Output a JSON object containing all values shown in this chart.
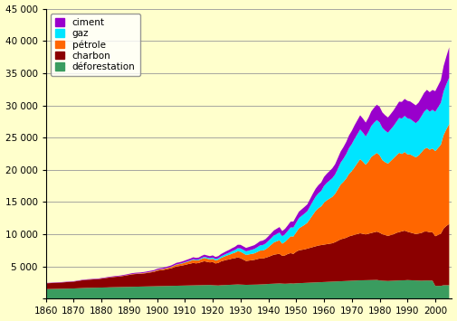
{
  "years": [
    1860,
    1861,
    1862,
    1863,
    1864,
    1865,
    1866,
    1867,
    1868,
    1869,
    1870,
    1871,
    1872,
    1873,
    1874,
    1875,
    1876,
    1877,
    1878,
    1879,
    1880,
    1881,
    1882,
    1883,
    1884,
    1885,
    1886,
    1887,
    1888,
    1889,
    1890,
    1891,
    1892,
    1893,
    1894,
    1895,
    1896,
    1897,
    1898,
    1899,
    1900,
    1901,
    1902,
    1903,
    1904,
    1905,
    1906,
    1907,
    1908,
    1909,
    1910,
    1911,
    1912,
    1913,
    1914,
    1915,
    1916,
    1917,
    1918,
    1919,
    1920,
    1921,
    1922,
    1923,
    1924,
    1925,
    1926,
    1927,
    1928,
    1929,
    1930,
    1931,
    1932,
    1933,
    1934,
    1935,
    1936,
    1937,
    1938,
    1939,
    1940,
    1941,
    1942,
    1943,
    1944,
    1945,
    1946,
    1947,
    1948,
    1949,
    1950,
    1951,
    1952,
    1953,
    1954,
    1955,
    1956,
    1957,
    1958,
    1959,
    1960,
    1961,
    1962,
    1963,
    1964,
    1965,
    1966,
    1967,
    1968,
    1969,
    1970,
    1971,
    1972,
    1973,
    1974,
    1975,
    1976,
    1977,
    1978,
    1979,
    1980,
    1981,
    1982,
    1983,
    1984,
    1985,
    1986,
    1987,
    1988,
    1989,
    1990,
    1991,
    1992,
    1993,
    1994,
    1995,
    1996,
    1997,
    1998,
    1999,
    2000,
    2001,
    2002,
    2003,
    2004,
    2005
  ],
  "deforestation": [
    1500,
    1510,
    1520,
    1530,
    1540,
    1550,
    1560,
    1570,
    1580,
    1590,
    1600,
    1620,
    1640,
    1660,
    1680,
    1700,
    1700,
    1710,
    1720,
    1730,
    1740,
    1750,
    1760,
    1780,
    1790,
    1800,
    1810,
    1820,
    1830,
    1840,
    1850,
    1860,
    1870,
    1880,
    1890,
    1900,
    1910,
    1920,
    1930,
    1940,
    1950,
    1960,
    1970,
    1980,
    1990,
    2000,
    2010,
    2020,
    2030,
    2040,
    2050,
    2060,
    2070,
    2080,
    2090,
    2100,
    2110,
    2120,
    2130,
    2140,
    2100,
    2080,
    2060,
    2100,
    2120,
    2140,
    2160,
    2180,
    2200,
    2220,
    2200,
    2180,
    2160,
    2170,
    2180,
    2190,
    2200,
    2220,
    2240,
    2260,
    2300,
    2320,
    2340,
    2360,
    2380,
    2350,
    2330,
    2350,
    2380,
    2360,
    2400,
    2420,
    2440,
    2460,
    2480,
    2500,
    2520,
    2540,
    2560,
    2580,
    2600,
    2620,
    2640,
    2660,
    2680,
    2700,
    2720,
    2740,
    2760,
    2780,
    2800,
    2820,
    2840,
    2860,
    2870,
    2880,
    2890,
    2900,
    2910,
    2920,
    2850,
    2800,
    2780,
    2760,
    2780,
    2800,
    2820,
    2840,
    2860,
    2870,
    2900,
    2880,
    2860,
    2840,
    2820,
    2800,
    2820,
    2830,
    2820,
    2810,
    2000,
    2000,
    2000,
    2100,
    2100,
    2100
  ],
  "charbon": [
    900,
    910,
    920,
    940,
    950,
    960,
    980,
    1000,
    1020,
    1040,
    1060,
    1100,
    1150,
    1200,
    1220,
    1250,
    1270,
    1290,
    1300,
    1320,
    1380,
    1420,
    1480,
    1520,
    1560,
    1600,
    1620,
    1660,
    1720,
    1780,
    1850,
    1920,
    1960,
    1970,
    1980,
    2020,
    2060,
    2120,
    2180,
    2240,
    2400,
    2450,
    2480,
    2560,
    2640,
    2720,
    2850,
    3000,
    3050,
    3120,
    3200,
    3300,
    3380,
    3480,
    3400,
    3450,
    3600,
    3700,
    3600,
    3500,
    3600,
    3400,
    3500,
    3700,
    3800,
    3900,
    3950,
    4050,
    4100,
    4200,
    4100,
    3900,
    3700,
    3750,
    3800,
    3850,
    3950,
    4050,
    4000,
    4100,
    4200,
    4350,
    4500,
    4550,
    4600,
    4300,
    4400,
    4600,
    4700,
    4600,
    4900,
    5100,
    5150,
    5200,
    5300,
    5400,
    5500,
    5600,
    5700,
    5750,
    5800,
    5850,
    5900,
    5950,
    6100,
    6300,
    6500,
    6600,
    6700,
    6900,
    7000,
    7100,
    7200,
    7300,
    7200,
    7100,
    7200,
    7300,
    7400,
    7500,
    7400,
    7200,
    7100,
    7000,
    7100,
    7200,
    7400,
    7500,
    7600,
    7700,
    7500,
    7400,
    7300,
    7200,
    7300,
    7400,
    7600,
    7600,
    7500,
    7500,
    7700,
    7900,
    8100,
    8800,
    9200,
    9500
  ],
  "petrole": [
    0,
    0,
    1,
    1,
    2,
    2,
    3,
    3,
    4,
    4,
    5,
    6,
    7,
    8,
    9,
    10,
    12,
    14,
    16,
    18,
    20,
    22,
    25,
    28,
    30,
    32,
    35,
    38,
    42,
    46,
    50,
    55,
    60,
    65,
    68,
    72,
    78,
    85,
    90,
    100,
    120,
    130,
    140,
    160,
    180,
    200,
    240,
    280,
    290,
    310,
    350,
    380,
    420,
    480,
    450,
    430,
    480,
    520,
    490,
    470,
    500,
    480,
    500,
    540,
    600,
    660,
    720,
    780,
    850,
    950,
    1000,
    970,
    940,
    960,
    980,
    1010,
    1100,
    1200,
    1250,
    1300,
    1500,
    1700,
    1900,
    2000,
    2100,
    1900,
    2100,
    2300,
    2600,
    2700,
    3000,
    3400,
    3600,
    3800,
    4000,
    4500,
    5000,
    5500,
    5800,
    6000,
    6500,
    6800,
    7000,
    7200,
    7500,
    8000,
    8500,
    8800,
    9200,
    9700,
    10000,
    10500,
    11000,
    11500,
    11200,
    10800,
    11200,
    11800,
    12000,
    12200,
    12000,
    11500,
    11300,
    11200,
    11500,
    11800,
    12000,
    12300,
    12000,
    12200,
    12000,
    12100,
    12000,
    11900,
    12100,
    12500,
    12800,
    13000,
    12800,
    13000,
    13200,
    13500,
    13800,
    14500,
    15000,
    15500
  ],
  "gaz": [
    0,
    0,
    0,
    0,
    0,
    0,
    0,
    0,
    0,
    0,
    0,
    0,
    0,
    0,
    0,
    0,
    0,
    0,
    0,
    0,
    0,
    0,
    0,
    0,
    0,
    0,
    0,
    0,
    0,
    0,
    5,
    6,
    7,
    8,
    9,
    10,
    12,
    14,
    16,
    18,
    20,
    22,
    25,
    28,
    30,
    35,
    40,
    45,
    50,
    60,
    70,
    80,
    90,
    100,
    110,
    120,
    140,
    160,
    170,
    180,
    200,
    210,
    220,
    240,
    270,
    300,
    340,
    380,
    420,
    480,
    520,
    540,
    560,
    600,
    640,
    680,
    740,
    800,
    850,
    900,
    970,
    1020,
    1080,
    1140,
    1200,
    1150,
    1200,
    1280,
    1380,
    1400,
    1500,
    1600,
    1680,
    1750,
    1800,
    1950,
    2100,
    2200,
    2300,
    2400,
    2600,
    2700,
    2800,
    2900,
    3000,
    3200,
    3400,
    3600,
    3800,
    4000,
    4200,
    4400,
    4500,
    4600,
    4500,
    4400,
    4600,
    4800,
    5000,
    5100,
    5100,
    5000,
    4900,
    4800,
    4900,
    5000,
    5200,
    5400,
    5500,
    5600,
    5600,
    5500,
    5400,
    5300,
    5400,
    5600,
    5800,
    6000,
    5900,
    6000,
    6100,
    6300,
    6500,
    6800,
    7000,
    7200
  ],
  "ciment": [
    50,
    51,
    52,
    53,
    54,
    55,
    56,
    57,
    58,
    59,
    60,
    62,
    64,
    66,
    68,
    70,
    72,
    74,
    76,
    78,
    80,
    83,
    86,
    90,
    93,
    96,
    100,
    104,
    108,
    112,
    116,
    120,
    125,
    128,
    130,
    135,
    140,
    145,
    150,
    158,
    165,
    170,
    175,
    185,
    195,
    205,
    220,
    235,
    240,
    248,
    260,
    270,
    285,
    300,
    295,
    300,
    320,
    340,
    330,
    320,
    330,
    320,
    330,
    360,
    380,
    400,
    430,
    460,
    490,
    530,
    550,
    540,
    530,
    550,
    570,
    590,
    620,
    660,
    680,
    700,
    720,
    750,
    780,
    810,
    840,
    800,
    820,
    860,
    910,
    920,
    950,
    990,
    1010,
    1040,
    1060,
    1120,
    1180,
    1230,
    1270,
    1310,
    1380,
    1420,
    1470,
    1530,
    1590,
    1650,
    1720,
    1790,
    1870,
    1960,
    2050,
    2100,
    2150,
    2200,
    2180,
    2150,
    2200,
    2260,
    2320,
    2380,
    2420,
    2400,
    2380,
    2360,
    2380,
    2420,
    2480,
    2530,
    2580,
    2630,
    2700,
    2720,
    2740,
    2760,
    2800,
    2860,
    2920,
    2980,
    3020,
    3080,
    3200,
    3350,
    3500,
    3900,
    4300,
    4700
  ],
  "colors": {
    "deforestation": "#3a9c5f",
    "charbon": "#8b0000",
    "petrole": "#ff6600",
    "gaz": "#00e5ff",
    "ciment": "#9900cc"
  },
  "labels": {
    "deforestation": "déforestation",
    "charbon": "charbon",
    "petrole": "pétrole",
    "gaz": "gaz",
    "ciment": "ciment"
  },
  "xlim": [
    1860,
    2006
  ],
  "ylim": [
    0,
    45000
  ],
  "yticks": [
    0,
    5000,
    10000,
    15000,
    20000,
    25000,
    30000,
    35000,
    40000,
    45000
  ],
  "xticks": [
    1860,
    1870,
    1880,
    1890,
    1900,
    1910,
    1920,
    1930,
    1940,
    1950,
    1960,
    1970,
    1980,
    1990,
    2000
  ],
  "background_color": "#ffffcc",
  "grid_color": "#999999"
}
